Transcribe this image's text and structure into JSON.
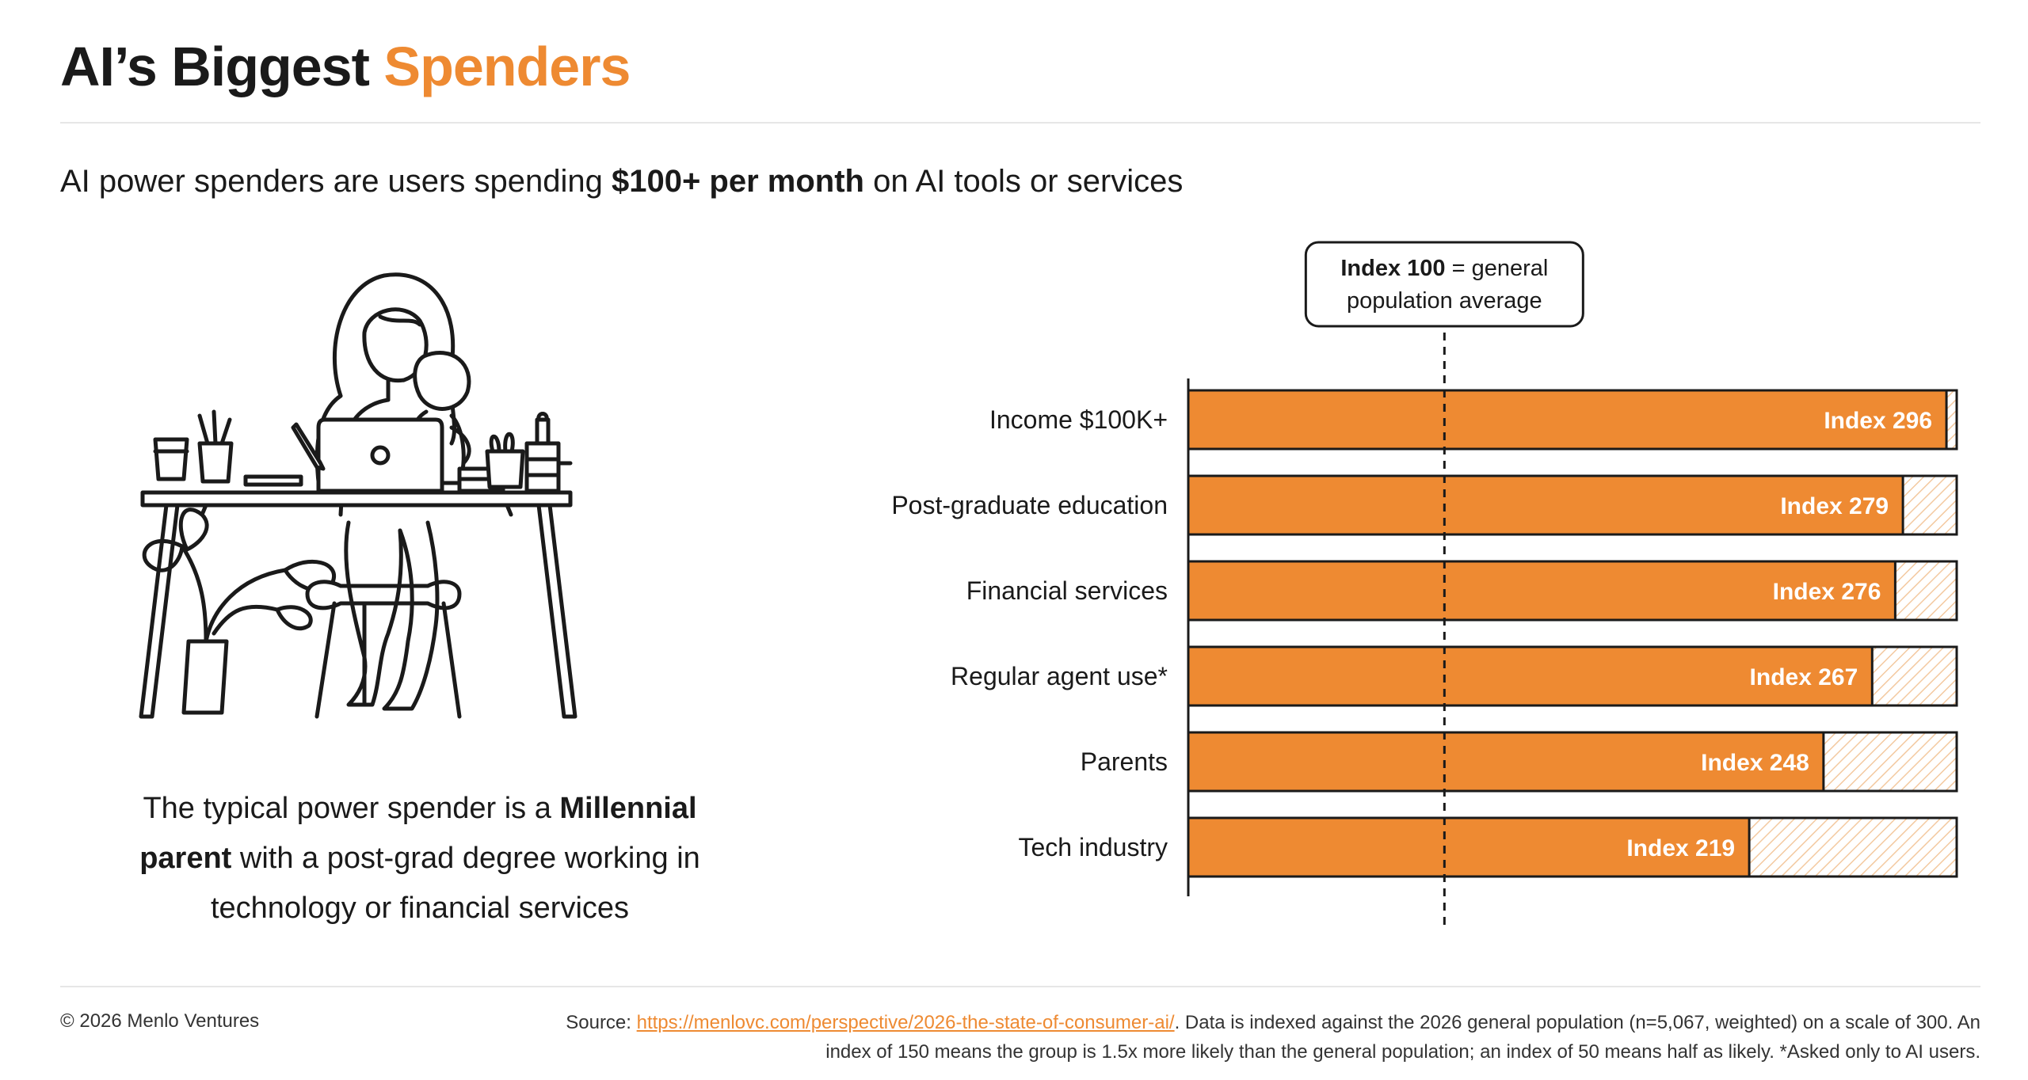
{
  "header": {
    "title_main": "AI’s Biggest",
    "title_accent": "Spenders",
    "subtitle_pre": "AI power spenders are users spending",
    "subtitle_bold": "$100+ per month",
    "subtitle_post": "on AI tools or services"
  },
  "caption": {
    "pre": "The typical power spender is a",
    "bold1": "Millennial",
    "bold2": "parent",
    "post": "with a post-grad degree working in technology or financial services"
  },
  "colors": {
    "accent": "#EE8A32",
    "text": "#1a1a1a",
    "hatch": "#F3C9A0"
  },
  "chart_data": {
    "type": "bar",
    "orientation": "horizontal",
    "categories": [
      "Income $100K+",
      "Post-graduate education",
      "Financial services",
      "Regular agent use*",
      "Parents",
      "Tech industry"
    ],
    "values": [
      296,
      279,
      276,
      267,
      248,
      219
    ],
    "value_labels": [
      "Index 296",
      "Index 279",
      "Index 276",
      "Index 267",
      "Index 248",
      "Index 219"
    ],
    "xlim": [
      0,
      300
    ],
    "reference_line": 100,
    "reference_label_bold": "Index 100",
    "reference_label_line1": "= general",
    "reference_label_line2": "population average",
    "grid": false
  },
  "footer": {
    "copyright": "© 2026 Menlo Ventures",
    "source_prefix": "Source:",
    "source_link": "https://menlovc.com/perspective/2026-the-state-of-consumer-ai/",
    "note": ". Data is indexed against the 2026 general population (n=5,067, weighted) on a scale of 300. An index of 150 means the group is 1.5x more likely than the general population; an index of 50 means half as likely. *Asked only to AI users."
  }
}
